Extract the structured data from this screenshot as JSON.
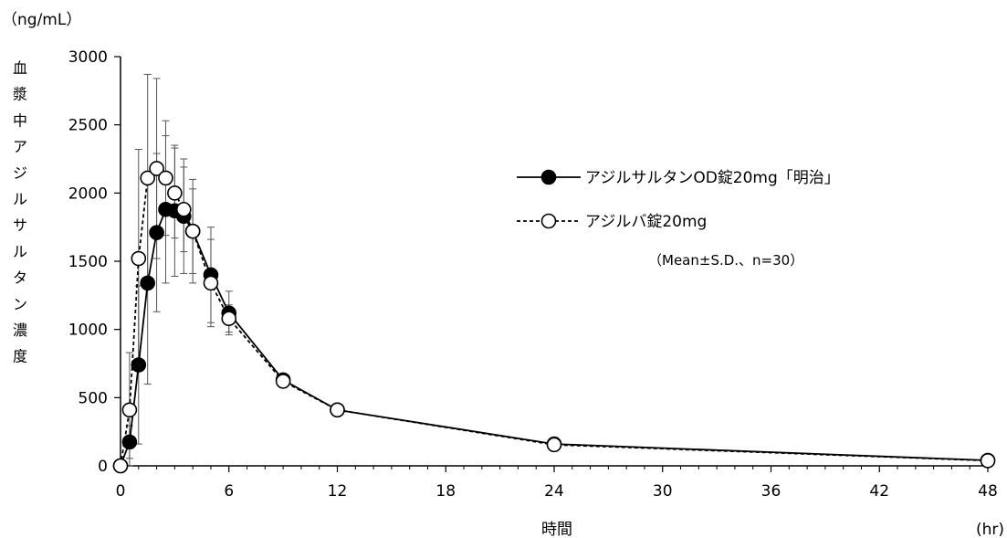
{
  "chart_data": {
    "type": "line",
    "unit_label": "（ng/mL）",
    "ylabel_chars": [
      "血",
      "漿",
      "中",
      "ア",
      "ジ",
      "ル",
      "サ",
      "ル",
      "タ",
      "ン",
      "濃",
      "度"
    ],
    "xlabel": "時間",
    "xunit_label": "(hr)",
    "xlim": [
      0,
      48
    ],
    "ylim": [
      0,
      3000
    ],
    "xticks": [
      0,
      6,
      12,
      18,
      24,
      30,
      36,
      42,
      48
    ],
    "yticks": [
      0,
      500,
      1000,
      1500,
      2000,
      2500,
      3000
    ],
    "note": "（Mean±S.D.、n=30）",
    "series": [
      {
        "name": "アジルサルタンOD錠20mg「明治」",
        "style": "solid",
        "marker": "filled-circle",
        "color": "#000000",
        "points": [
          {
            "x": 0,
            "y": 0
          },
          {
            "x": 0.5,
            "y": 175,
            "sd": 120
          },
          {
            "x": 1,
            "y": 740,
            "sd": 580
          },
          {
            "x": 1.5,
            "y": 1340,
            "sd": 740
          },
          {
            "x": 2,
            "y": 1710,
            "sd": 580
          },
          {
            "x": 2.5,
            "y": 1880,
            "sd": 540
          },
          {
            "x": 3,
            "y": 1870,
            "sd": 480
          },
          {
            "x": 3.5,
            "y": 1830,
            "sd": 420
          },
          {
            "x": 4,
            "y": 1720,
            "sd": 380
          },
          {
            "x": 5,
            "y": 1400,
            "sd": 350
          },
          {
            "x": 6,
            "y": 1120,
            "sd": 160
          },
          {
            "x": 9,
            "y": 630,
            "sd": 0
          },
          {
            "x": 12,
            "y": 410,
            "sd": 0
          },
          {
            "x": 24,
            "y": 160,
            "sd": 0
          },
          {
            "x": 48,
            "y": 40,
            "sd": 0
          }
        ]
      },
      {
        "name": "アジルバ錠20mg",
        "style": "dashed",
        "marker": "open-circle",
        "color": "#000000",
        "points": [
          {
            "x": 0,
            "y": 0
          },
          {
            "x": 0.5,
            "y": 410,
            "sd": 420
          },
          {
            "x": 1,
            "y": 1520,
            "sd": 800
          },
          {
            "x": 1.5,
            "y": 2110,
            "sd": 760
          },
          {
            "x": 2,
            "y": 2180,
            "sd": 660
          },
          {
            "x": 2.5,
            "y": 2110,
            "sd": 420
          },
          {
            "x": 3,
            "y": 2000,
            "sd": 330
          },
          {
            "x": 3.5,
            "y": 1880,
            "sd": 310
          },
          {
            "x": 4,
            "y": 1720,
            "sd": 310
          },
          {
            "x": 5,
            "y": 1340,
            "sd": 320
          },
          {
            "x": 6,
            "y": 1080,
            "sd": 100
          },
          {
            "x": 9,
            "y": 620,
            "sd": 0
          },
          {
            "x": 12,
            "y": 410,
            "sd": 0
          },
          {
            "x": 24,
            "y": 155,
            "sd": 0
          },
          {
            "x": 48,
            "y": 38,
            "sd": 0
          }
        ]
      }
    ]
  }
}
